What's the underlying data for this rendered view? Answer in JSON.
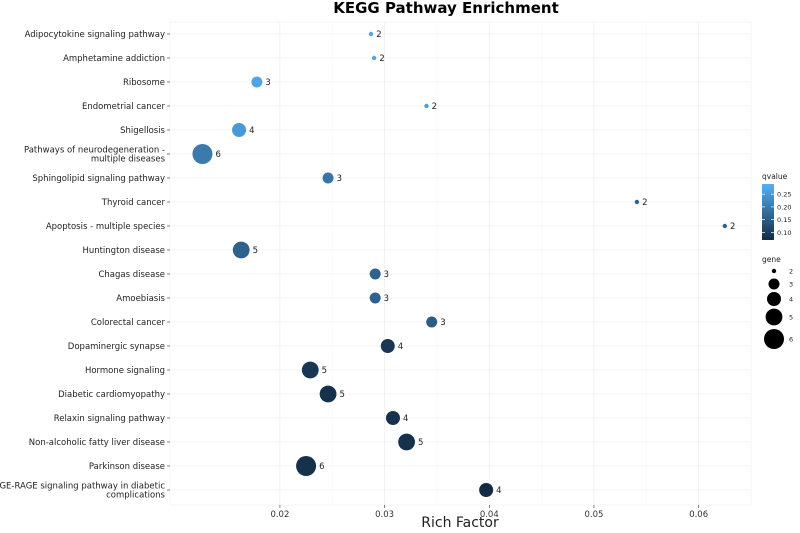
{
  "chart_data": {
    "type": "scatter",
    "title": "KEGG Pathway Enrichment",
    "xlabel": "Rich Factor",
    "ylabel": "",
    "xlim": [
      0.0095,
      0.065
    ],
    "x_ticks": [
      "0.02",
      "0.03",
      "0.04",
      "0.05",
      "0.06"
    ],
    "x_tick_values": [
      0.02,
      0.03,
      0.04,
      0.05,
      0.06
    ],
    "grid": true,
    "legend_position": "right",
    "color_legend": {
      "title": "qvalue",
      "range": [
        0.07,
        0.29
      ],
      "ticks": [
        "0.25",
        "0.20",
        "0.15",
        "0.10"
      ],
      "tick_values": [
        0.25,
        0.2,
        0.15,
        0.1
      ],
      "low_color": "#132b43",
      "high_color": "#56b1f7"
    },
    "size_legend": {
      "title": "gene",
      "labels": [
        "2",
        "3",
        "4",
        "5",
        "6"
      ],
      "values": [
        2,
        3,
        4,
        5,
        6
      ]
    },
    "points": [
      {
        "pathway": "Adipocytokine signaling pathway",
        "rich_factor": 0.0287,
        "gene": 2,
        "label": "2",
        "qvalue": 0.27
      },
      {
        "pathway": "Amphetamine addiction",
        "rich_factor": 0.029,
        "gene": 2,
        "label": "2",
        "qvalue": 0.27
      },
      {
        "pathway": "Ribosome",
        "rich_factor": 0.0178,
        "gene": 3,
        "label": "3",
        "qvalue": 0.27
      },
      {
        "pathway": "Endometrial cancer",
        "rich_factor": 0.034,
        "gene": 2,
        "label": "2",
        "qvalue": 0.26
      },
      {
        "pathway": "Shigellosis",
        "rich_factor": 0.0161,
        "gene": 4,
        "label": "4",
        "qvalue": 0.25
      },
      {
        "pathway": "Pathways of neurodegeneration -\nmultiple diseases",
        "rich_factor": 0.0126,
        "gene": 6,
        "label": "6",
        "qvalue": 0.2
      },
      {
        "pathway": "Sphingolipid signaling pathway",
        "rich_factor": 0.0246,
        "gene": 3,
        "label": "3",
        "qvalue": 0.19
      },
      {
        "pathway": "Thyroid cancer",
        "rich_factor": 0.0541,
        "gene": 2,
        "label": "2",
        "qvalue": 0.16
      },
      {
        "pathway": "Apoptosis - multiple species",
        "rich_factor": 0.0625,
        "gene": 2,
        "label": "2",
        "qvalue": 0.16
      },
      {
        "pathway": "Huntington disease",
        "rich_factor": 0.0163,
        "gene": 5,
        "label": "5",
        "qvalue": 0.16
      },
      {
        "pathway": "Chagas disease",
        "rich_factor": 0.0291,
        "gene": 3,
        "label": "3",
        "qvalue": 0.16
      },
      {
        "pathway": "Amoebiasis",
        "rich_factor": 0.0291,
        "gene": 3,
        "label": "3",
        "qvalue": 0.16
      },
      {
        "pathway": "Colorectal cancer",
        "rich_factor": 0.0345,
        "gene": 3,
        "label": "3",
        "qvalue": 0.15
      },
      {
        "pathway": "Dopaminergic synapse",
        "rich_factor": 0.0303,
        "gene": 4,
        "label": "4",
        "qvalue": 0.09
      },
      {
        "pathway": "Hormone signaling",
        "rich_factor": 0.0229,
        "gene": 5,
        "label": "5",
        "qvalue": 0.09
      },
      {
        "pathway": "Diabetic cardiomyopathy",
        "rich_factor": 0.0246,
        "gene": 5,
        "label": "5",
        "qvalue": 0.08
      },
      {
        "pathway": "Relaxin signaling pathway",
        "rich_factor": 0.0308,
        "gene": 4,
        "label": "4",
        "qvalue": 0.08
      },
      {
        "pathway": "Non-alcoholic fatty liver disease",
        "rich_factor": 0.0321,
        "gene": 5,
        "label": "5",
        "qvalue": 0.08
      },
      {
        "pathway": "Parkinson disease",
        "rich_factor": 0.0225,
        "gene": 6,
        "label": "6",
        "qvalue": 0.08
      },
      {
        "pathway": "AGE-RAGE signaling pathway in diabetic\ncomplications",
        "rich_factor": 0.0397,
        "gene": 4,
        "label": "4",
        "qvalue": 0.07
      }
    ]
  }
}
